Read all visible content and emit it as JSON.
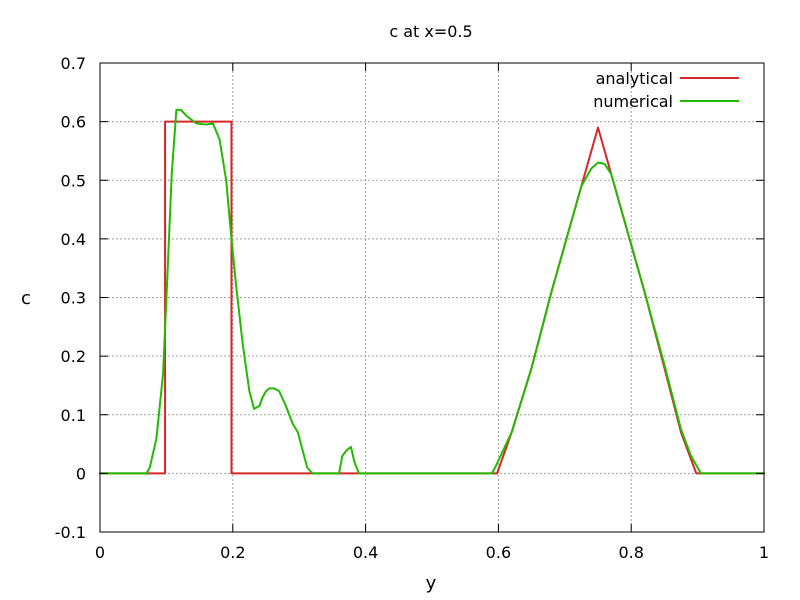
{
  "chart_data": {
    "type": "line",
    "title": "c at x=0.5",
    "xlabel": "y",
    "ylabel": "c",
    "xlim": [
      0,
      1
    ],
    "ylim": [
      -0.1,
      0.7
    ],
    "x_ticks": [
      0,
      0.2,
      0.4,
      0.6,
      0.8,
      1
    ],
    "x_tick_labels": [
      "0",
      "0.2",
      "0.4",
      "0.6",
      "0.8",
      "1"
    ],
    "y_ticks": [
      -0.1,
      0,
      0.1,
      0.2,
      0.3,
      0.4,
      0.5,
      0.6,
      0.7
    ],
    "y_tick_labels": [
      "-0.1",
      "0",
      "0.1",
      "0.2",
      "0.3",
      "0.4",
      "0.5",
      "0.6",
      "0.7"
    ],
    "grid": true,
    "legend_position": "top-right",
    "series": [
      {
        "name": "analytical",
        "color": "#d62728",
        "points": [
          [
            0.0,
            0.0
          ],
          [
            0.098,
            0.0
          ],
          [
            0.098,
            0.6
          ],
          [
            0.198,
            0.6
          ],
          [
            0.198,
            0.0
          ],
          [
            0.598,
            0.0
          ],
          [
            0.62,
            0.07
          ],
          [
            0.65,
            0.18
          ],
          [
            0.68,
            0.31
          ],
          [
            0.71,
            0.43
          ],
          [
            0.735,
            0.53
          ],
          [
            0.75,
            0.59
          ],
          [
            0.765,
            0.53
          ],
          [
            0.79,
            0.43
          ],
          [
            0.82,
            0.31
          ],
          [
            0.85,
            0.18
          ],
          [
            0.875,
            0.07
          ],
          [
            0.898,
            0.0
          ],
          [
            1.0,
            0.0
          ]
        ]
      },
      {
        "name": "numerical",
        "color": "#22bb00",
        "points": [
          [
            0.0,
            0.0
          ],
          [
            0.07,
            0.0
          ],
          [
            0.075,
            0.01
          ],
          [
            0.085,
            0.06
          ],
          [
            0.095,
            0.17
          ],
          [
            0.102,
            0.35
          ],
          [
            0.108,
            0.51
          ],
          [
            0.115,
            0.62
          ],
          [
            0.122,
            0.62
          ],
          [
            0.13,
            0.61
          ],
          [
            0.145,
            0.597
          ],
          [
            0.16,
            0.595
          ],
          [
            0.17,
            0.597
          ],
          [
            0.18,
            0.57
          ],
          [
            0.19,
            0.5
          ],
          [
            0.198,
            0.4
          ],
          [
            0.205,
            0.32
          ],
          [
            0.215,
            0.22
          ],
          [
            0.225,
            0.14
          ],
          [
            0.232,
            0.11
          ],
          [
            0.24,
            0.115
          ],
          [
            0.245,
            0.13
          ],
          [
            0.25,
            0.14
          ],
          [
            0.255,
            0.145
          ],
          [
            0.262,
            0.145
          ],
          [
            0.27,
            0.14
          ],
          [
            0.28,
            0.115
          ],
          [
            0.29,
            0.085
          ],
          [
            0.298,
            0.07
          ],
          [
            0.305,
            0.04
          ],
          [
            0.312,
            0.01
          ],
          [
            0.32,
            0.0
          ],
          [
            0.36,
            0.0
          ],
          [
            0.365,
            0.03
          ],
          [
            0.372,
            0.04
          ],
          [
            0.378,
            0.045
          ],
          [
            0.383,
            0.02
          ],
          [
            0.39,
            0.0
          ],
          [
            0.59,
            0.0
          ],
          [
            0.595,
            0.01
          ],
          [
            0.62,
            0.07
          ],
          [
            0.65,
            0.18
          ],
          [
            0.68,
            0.31
          ],
          [
            0.71,
            0.43
          ],
          [
            0.725,
            0.49
          ],
          [
            0.74,
            0.52
          ],
          [
            0.75,
            0.53
          ],
          [
            0.76,
            0.528
          ],
          [
            0.77,
            0.51
          ],
          [
            0.79,
            0.43
          ],
          [
            0.82,
            0.31
          ],
          [
            0.85,
            0.185
          ],
          [
            0.875,
            0.075
          ],
          [
            0.89,
            0.03
          ],
          [
            0.905,
            0.0
          ],
          [
            1.0,
            0.0
          ]
        ]
      }
    ]
  }
}
